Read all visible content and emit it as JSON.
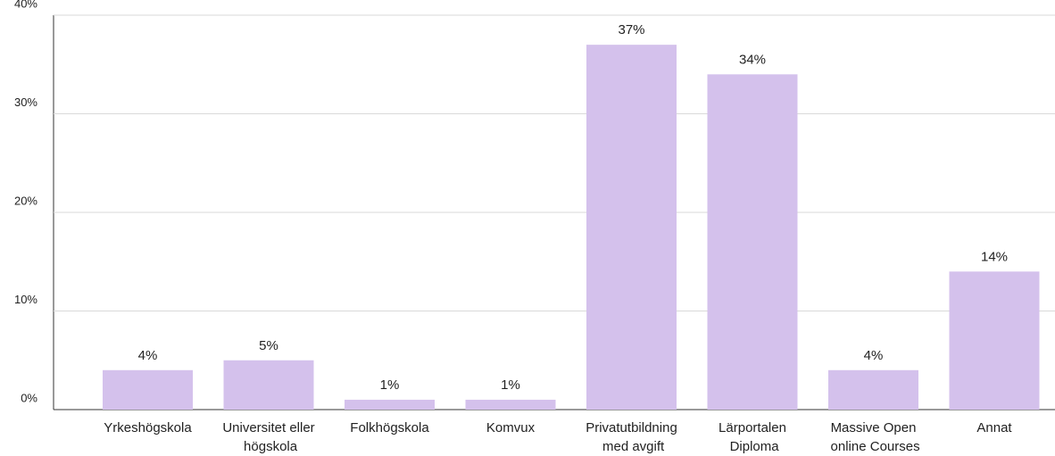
{
  "chart_data": {
    "type": "bar",
    "categories": [
      "Yrkeshögskola",
      "Universitet eller högskola",
      "Folkhögskola",
      "Komvux",
      "Privatutbildning med avgift",
      "Lärportalen Diploma",
      "Massive Open online Courses",
      "Annat"
    ],
    "values": [
      4,
      5,
      1,
      1,
      37,
      34,
      4,
      14
    ],
    "value_labels": [
      "4%",
      "5%",
      "1%",
      "1%",
      "37%",
      "34%",
      "4%",
      "14%"
    ],
    "color": "#d4c1ec",
    "ylim": [
      0,
      40
    ],
    "yticks": [
      {
        "value": 0,
        "label": "0%"
      },
      {
        "value": 10,
        "label": "10%"
      },
      {
        "value": 20,
        "label": "20%"
      },
      {
        "value": 30,
        "label": "30%"
      },
      {
        "value": 40,
        "label": "40%"
      }
    ],
    "grid": true
  }
}
